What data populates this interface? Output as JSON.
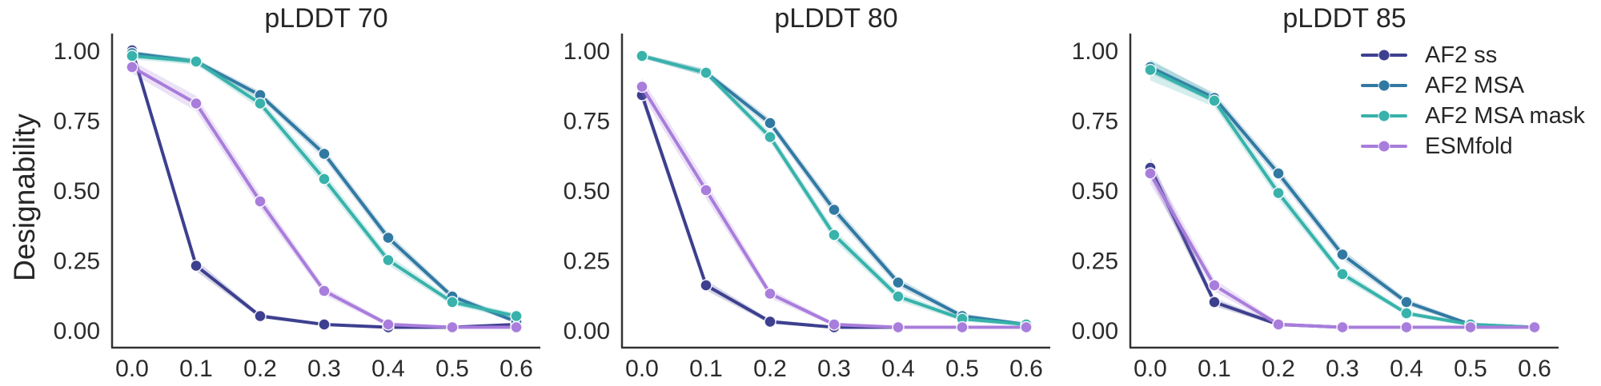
{
  "figure": {
    "ylabel": "Designability",
    "background_color": "#ffffff",
    "text_color": "#262626",
    "axis_color": "#333333",
    "grid": "off"
  },
  "legend": {
    "position": "upper right of third subplot",
    "entries": [
      {
        "label": "AF2 ss",
        "color": "#3d3f8f"
      },
      {
        "label": "AF2 MSA",
        "color": "#3179a2"
      },
      {
        "label": "AF2 MSA mask",
        "color": "#38b2ab"
      },
      {
        "label": "ESMfold",
        "color": "#a87ddb"
      }
    ]
  },
  "chart_data": [
    {
      "type": "line",
      "title": "pLDDT 70",
      "xlabel": "",
      "ylabel": "Designability",
      "x": [
        0.0,
        0.1,
        0.2,
        0.3,
        0.4,
        0.5,
        0.6
      ],
      "xticklabels": [
        "0.0",
        "0.1",
        "0.2",
        "0.3",
        "0.4",
        "0.5",
        "0.6"
      ],
      "yticks": [
        0.0,
        0.25,
        0.5,
        0.75,
        1.0
      ],
      "yticklabels": [
        "0.00",
        "0.25",
        "0.50",
        "0.75",
        "1.00"
      ],
      "xlim": [
        -0.03,
        0.63
      ],
      "ylim": [
        -0.06,
        1.06
      ],
      "series": [
        {
          "name": "AF2 ss",
          "color": "#3d3f8f",
          "values": [
            1.0,
            0.23,
            0.05,
            0.02,
            0.01,
            0.01,
            0.02
          ],
          "band": [
            0.012,
            0.02,
            0.008,
            0.005,
            0.004,
            0.004,
            0.005
          ]
        },
        {
          "name": "AF2 MSA",
          "color": "#3179a2",
          "values": [
            0.99,
            0.96,
            0.84,
            0.63,
            0.33,
            0.12,
            0.03
          ],
          "band": [
            0.008,
            0.01,
            0.014,
            0.018,
            0.018,
            0.012,
            0.008
          ]
        },
        {
          "name": "AF2 MSA mask",
          "color": "#38b2ab",
          "values": [
            0.98,
            0.96,
            0.81,
            0.54,
            0.25,
            0.1,
            0.05
          ],
          "band": [
            0.012,
            0.012,
            0.018,
            0.022,
            0.018,
            0.012,
            0.01
          ]
        },
        {
          "name": "ESMfold",
          "color": "#a87ddb",
          "values": [
            0.94,
            0.81,
            0.46,
            0.14,
            0.02,
            0.01,
            0.01
          ],
          "band": [
            0.022,
            0.028,
            0.025,
            0.015,
            0.008,
            0.004,
            0.004
          ]
        }
      ]
    },
    {
      "type": "line",
      "title": "pLDDT 80",
      "xlabel": "",
      "ylabel": "",
      "x": [
        0.0,
        0.1,
        0.2,
        0.3,
        0.4,
        0.5,
        0.6
      ],
      "xticklabels": [
        "0.0",
        "0.1",
        "0.2",
        "0.3",
        "0.4",
        "0.5",
        "0.6"
      ],
      "yticks": [
        0.0,
        0.25,
        0.5,
        0.75,
        1.0
      ],
      "yticklabels": [
        "0.00",
        "0.25",
        "0.50",
        "0.75",
        "1.00"
      ],
      "xlim": [
        -0.03,
        0.63
      ],
      "ylim": [
        -0.06,
        1.06
      ],
      "series": [
        {
          "name": "AF2 ss",
          "color": "#3d3f8f",
          "values": [
            0.84,
            0.16,
            0.03,
            0.01,
            0.01,
            0.01,
            0.01
          ],
          "band": [
            0.022,
            0.018,
            0.008,
            0.004,
            0.004,
            0.004,
            0.004
          ]
        },
        {
          "name": "AF2 MSA",
          "color": "#3179a2",
          "values": [
            0.98,
            0.92,
            0.74,
            0.43,
            0.17,
            0.05,
            0.02
          ],
          "band": [
            0.008,
            0.012,
            0.016,
            0.02,
            0.016,
            0.01,
            0.006
          ]
        },
        {
          "name": "AF2 MSA mask",
          "color": "#38b2ab",
          "values": [
            0.98,
            0.92,
            0.69,
            0.34,
            0.12,
            0.04,
            0.02
          ],
          "band": [
            0.008,
            0.012,
            0.018,
            0.02,
            0.015,
            0.009,
            0.006
          ]
        },
        {
          "name": "ESMfold",
          "color": "#a87ddb",
          "values": [
            0.87,
            0.5,
            0.13,
            0.02,
            0.01,
            0.01,
            0.01
          ],
          "band": [
            0.03,
            0.03,
            0.016,
            0.007,
            0.004,
            0.004,
            0.004
          ]
        }
      ]
    },
    {
      "type": "line",
      "title": "pLDDT 85",
      "xlabel": "",
      "ylabel": "",
      "x": [
        0.0,
        0.1,
        0.2,
        0.3,
        0.4,
        0.5,
        0.6
      ],
      "xticklabels": [
        "0.0",
        "0.1",
        "0.2",
        "0.3",
        "0.4",
        "0.5",
        "0.6"
      ],
      "yticks": [
        0.0,
        0.25,
        0.5,
        0.75,
        1.0
      ],
      "yticklabels": [
        "0.00",
        "0.25",
        "0.50",
        "0.75",
        "1.00"
      ],
      "xlim": [
        -0.03,
        0.63
      ],
      "ylim": [
        -0.06,
        1.06
      ],
      "series": [
        {
          "name": "AF2 ss",
          "color": "#3d3f8f",
          "values": [
            0.58,
            0.1,
            0.02,
            0.01,
            0.01,
            0.01,
            0.01
          ],
          "band": [
            0.035,
            0.015,
            0.006,
            0.004,
            0.004,
            0.004,
            0.004
          ]
        },
        {
          "name": "AF2 MSA",
          "color": "#3179a2",
          "values": [
            0.94,
            0.83,
            0.56,
            0.27,
            0.1,
            0.02,
            0.01
          ],
          "band": [
            0.022,
            0.018,
            0.02,
            0.018,
            0.012,
            0.007,
            0.005
          ]
        },
        {
          "name": "AF2 MSA mask",
          "color": "#38b2ab",
          "values": [
            0.93,
            0.82,
            0.49,
            0.2,
            0.06,
            0.02,
            0.01
          ],
          "band": [
            0.038,
            0.022,
            0.022,
            0.016,
            0.009,
            0.006,
            0.005
          ]
        },
        {
          "name": "ESMfold",
          "color": "#a87ddb",
          "values": [
            0.56,
            0.16,
            0.02,
            0.01,
            0.01,
            0.01,
            0.01
          ],
          "band": [
            0.038,
            0.022,
            0.008,
            0.004,
            0.004,
            0.004,
            0.004
          ]
        }
      ]
    }
  ]
}
